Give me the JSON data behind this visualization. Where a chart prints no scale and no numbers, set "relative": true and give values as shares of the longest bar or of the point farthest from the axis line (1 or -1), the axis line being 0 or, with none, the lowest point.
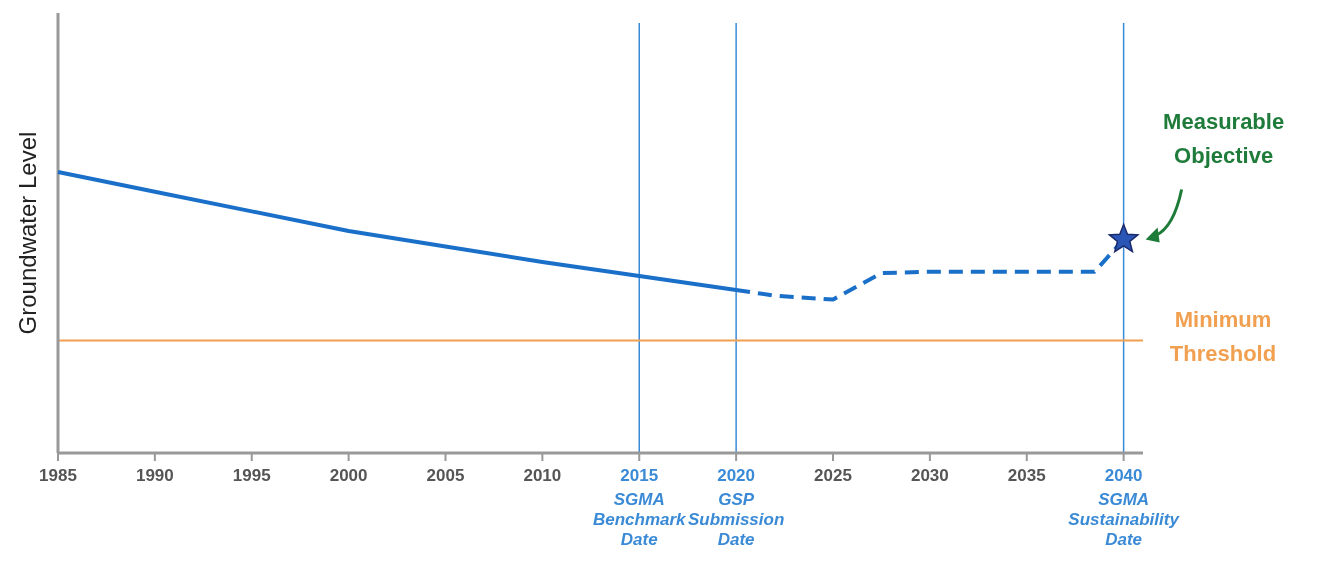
{
  "chart_data": {
    "type": "line",
    "relative": true,
    "ylabel": "Groundwater Level",
    "xlim": [
      1985,
      2041
    ],
    "xticks": [
      1985,
      1990,
      1995,
      2000,
      2005,
      2010,
      2015,
      2020,
      2025,
      2030,
      2035,
      2040
    ],
    "series": [
      {
        "color": "#1a6fc9",
        "line_style": "solid",
        "x": [
          1985,
          1990,
          1995,
          2000,
          2005,
          2010,
          2015,
          2020
        ],
        "values": [
          1.0,
          0.93,
          0.86,
          0.79,
          0.735,
          0.68,
          0.63,
          0.58
        ]
      },
      {
        "color": "#1a6fc9",
        "line_style": "dashed",
        "x": [
          2020,
          2022,
          2025,
          2027.5,
          2030,
          2035,
          2038.5,
          2040
        ],
        "values": [
          0.58,
          0.56,
          0.546,
          0.64,
          0.645,
          0.645,
          0.645,
          0.76
        ]
      },
      {
        "type": "scatter",
        "color": "#2a56b5",
        "marker": "star",
        "x": [
          2040
        ],
        "values": [
          0.76
        ]
      }
    ],
    "ref_lines": [
      {
        "axis": "x",
        "value": 2015,
        "label": "SGMA Benchmark Date",
        "color": "#3a8ad6"
      },
      {
        "axis": "x",
        "value": 2020,
        "label": "GSP Submission Date",
        "color": "#3a8ad6"
      },
      {
        "axis": "x",
        "value": 2040,
        "label": "SGMA Sustainability Date",
        "color": "#3a8ad6"
      },
      {
        "axis": "y",
        "value": 0.4,
        "label": "Minimum Threshold",
        "color": "#f0a050"
      }
    ],
    "annotations": [
      "Measurable Objective"
    ]
  }
}
